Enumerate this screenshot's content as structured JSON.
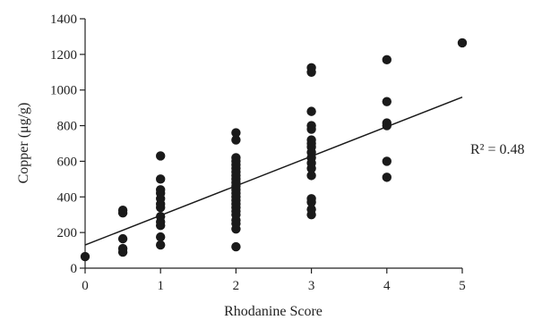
{
  "chart_data": {
    "type": "scatter",
    "title": "",
    "xlabel": "Rhodanine Score",
    "ylabel": "Copper (μg/g)",
    "xlim": [
      0,
      5
    ],
    "ylim": [
      0,
      1400
    ],
    "x_ticks": [
      0,
      1,
      2,
      3,
      4,
      5
    ],
    "y_ticks": [
      0,
      200,
      400,
      600,
      800,
      1000,
      1200,
      1400
    ],
    "grid": false,
    "legend": "none",
    "marker_color": "#1a1a1a",
    "annotation": "R² = 0.48",
    "trendline": {
      "intercept": 130,
      "slope": 166
    },
    "series": [
      {
        "points": [
          [
            0,
            65
          ],
          [
            0.5,
            90
          ],
          [
            0.5,
            110
          ],
          [
            0.5,
            165
          ],
          [
            0.5,
            310
          ],
          [
            0.5,
            325
          ],
          [
            1,
            130
          ],
          [
            1,
            175
          ],
          [
            1,
            240
          ],
          [
            1,
            260
          ],
          [
            1,
            290
          ],
          [
            1,
            340
          ],
          [
            1,
            360
          ],
          [
            1,
            390
          ],
          [
            1,
            420
          ],
          [
            1,
            440
          ],
          [
            1,
            500
          ],
          [
            1,
            630
          ],
          [
            2,
            120
          ],
          [
            2,
            220
          ],
          [
            2,
            250
          ],
          [
            2,
            270
          ],
          [
            2,
            300
          ],
          [
            2,
            320
          ],
          [
            2,
            340
          ],
          [
            2,
            360
          ],
          [
            2,
            380
          ],
          [
            2,
            400
          ],
          [
            2,
            420
          ],
          [
            2,
            440
          ],
          [
            2,
            460
          ],
          [
            2,
            480
          ],
          [
            2,
            500
          ],
          [
            2,
            520
          ],
          [
            2,
            540
          ],
          [
            2,
            560
          ],
          [
            2,
            580
          ],
          [
            2,
            600
          ],
          [
            2,
            620
          ],
          [
            2,
            720
          ],
          [
            2,
            760
          ],
          [
            3,
            300
          ],
          [
            3,
            330
          ],
          [
            3,
            370
          ],
          [
            3,
            390
          ],
          [
            3,
            520
          ],
          [
            3,
            560
          ],
          [
            3,
            590
          ],
          [
            3,
            620
          ],
          [
            3,
            650
          ],
          [
            3,
            680
          ],
          [
            3,
            700
          ],
          [
            3,
            720
          ],
          [
            3,
            780
          ],
          [
            3,
            800
          ],
          [
            3,
            880
          ],
          [
            3,
            1100
          ],
          [
            3,
            1125
          ],
          [
            4,
            510
          ],
          [
            4,
            600
          ],
          [
            4,
            800
          ],
          [
            4,
            815
          ],
          [
            4,
            935
          ],
          [
            4,
            1170
          ],
          [
            5,
            1265
          ]
        ]
      }
    ]
  }
}
